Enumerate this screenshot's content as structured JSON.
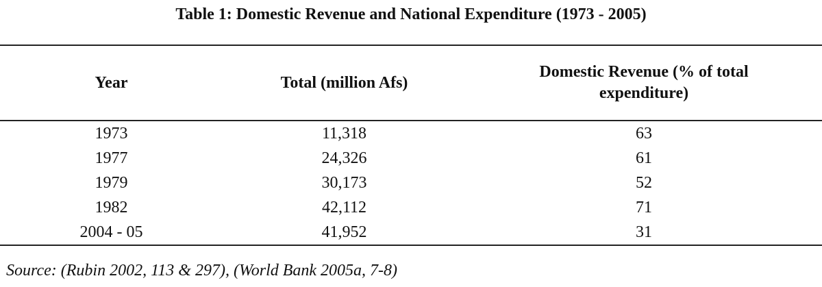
{
  "title": "Table 1: Domestic Revenue and National Expenditure (1973 - 2005)",
  "table": {
    "headers": [
      "Year",
      "Total (million Afs)",
      "Domestic Revenue (% of total expenditure)"
    ],
    "rows": [
      [
        "1973",
        "11,318",
        "63"
      ],
      [
        "1977",
        "24,326",
        "61"
      ],
      [
        "1979",
        "30,173",
        "52"
      ],
      [
        "1982",
        "42,112",
        "71"
      ],
      [
        "2004 - 05",
        "41,952",
        "31"
      ]
    ]
  },
  "source": "Source: (Rubin 2002, 113 & 297), (World Bank 2005a, 7-8)"
}
